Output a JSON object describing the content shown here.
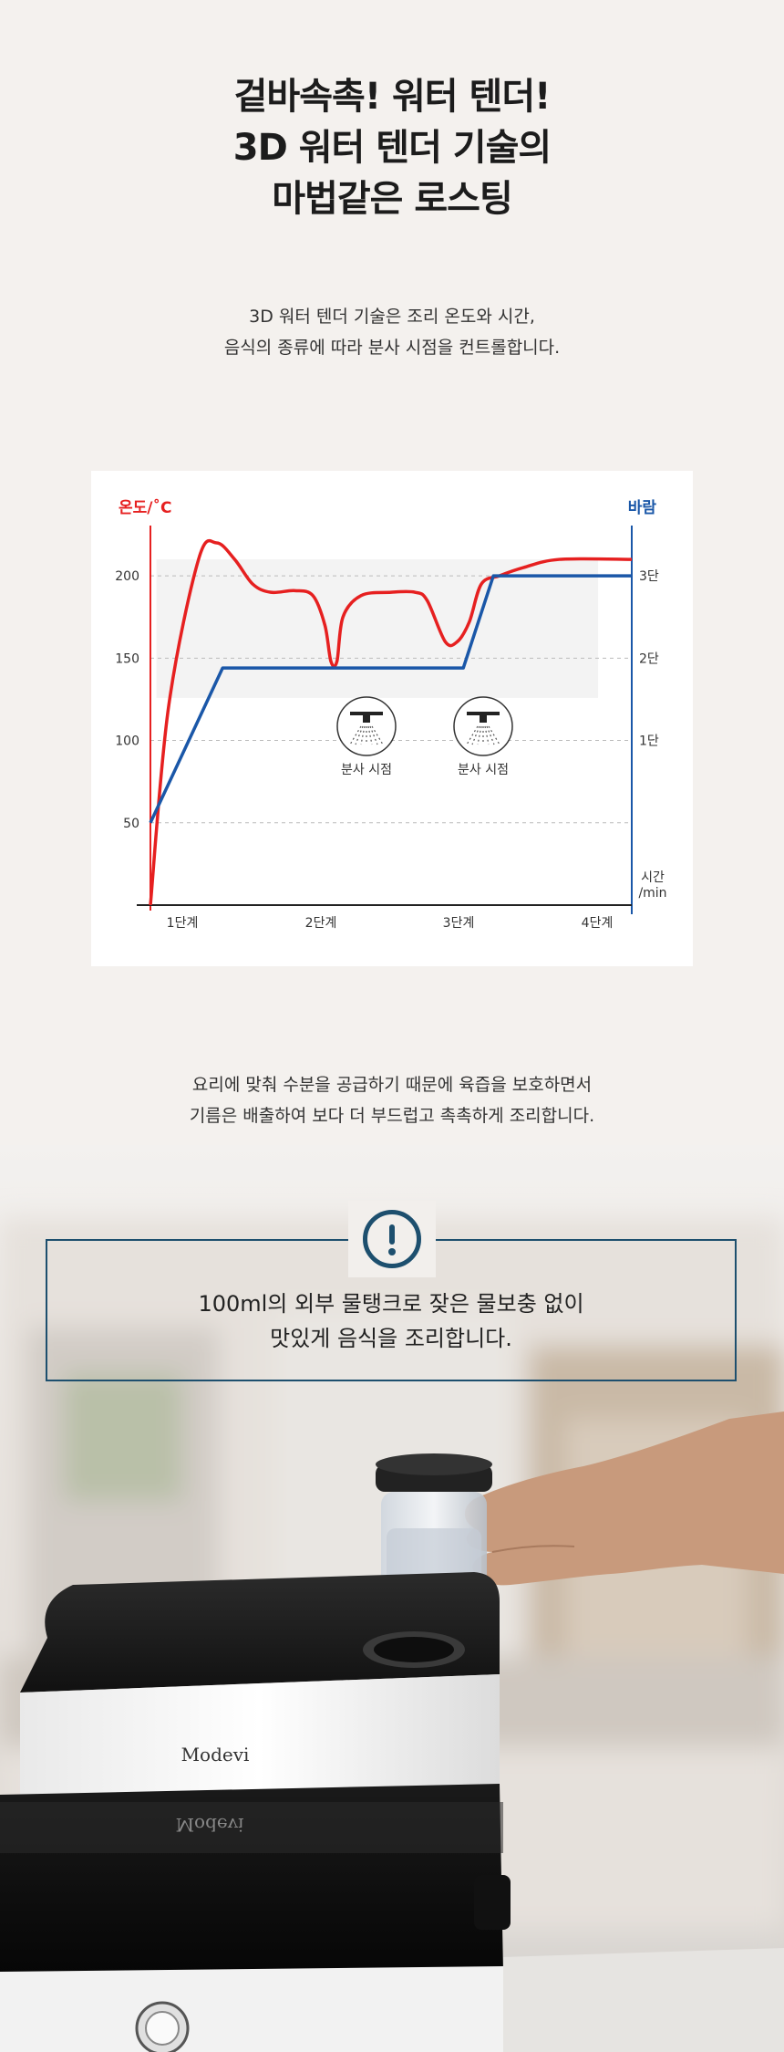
{
  "headline": {
    "line1": "겉바속촉! 워터 텐더!",
    "line2": "3D 워터 텐더 기술의",
    "line3": "마법같은 로스팅"
  },
  "intro": {
    "line1": "3D 워터 텐더 기술은 조리 온도와 시간,",
    "line2": "음식의 종류에 따라 분사 시점을 컨트롤합니다."
  },
  "chart_data": {
    "type": "line",
    "title": "",
    "left_axis_label": "온도/˚C",
    "right_axis_label": "바람",
    "x_axis_label": "시간\n/min",
    "x_axis_label_lines": [
      "시간",
      "/min"
    ],
    "y_ticks": [
      "200",
      "150",
      "100",
      "50"
    ],
    "y_tick_values": [
      200,
      150,
      100,
      50
    ],
    "y2_ticks": [
      "3단",
      "2단",
      "1단"
    ],
    "x_ticks": [
      "1단계",
      "2단계",
      "3단계",
      "4단계"
    ],
    "ylim": [
      0,
      225
    ],
    "xlim": [
      0,
      4
    ],
    "grid": "dashed horizontal",
    "spray_label": "분사 시점",
    "spray_points": [
      {
        "x": 1.55,
        "label": "분사 시점"
      },
      {
        "x": 2.4,
        "label": "분사 시점"
      }
    ],
    "series": [
      {
        "color": "#e62020",
        "axis": "left",
        "points": [
          [
            0,
            0
          ],
          [
            0.15,
            120
          ],
          [
            0.4,
            210
          ],
          [
            0.55,
            220
          ],
          [
            0.7,
            210
          ],
          [
            0.85,
            195
          ],
          [
            1.0,
            190
          ],
          [
            1.2,
            191
          ],
          [
            1.35,
            188
          ],
          [
            1.45,
            170
          ],
          [
            1.5,
            148
          ],
          [
            1.55,
            148
          ],
          [
            1.6,
            175
          ],
          [
            1.75,
            188
          ],
          [
            2.0,
            190
          ],
          [
            2.2,
            190
          ],
          [
            2.3,
            185
          ],
          [
            2.45,
            160
          ],
          [
            2.55,
            160
          ],
          [
            2.65,
            172
          ],
          [
            2.75,
            195
          ],
          [
            2.9,
            200
          ],
          [
            3.1,
            205
          ],
          [
            3.4,
            210
          ],
          [
            4.0,
            210
          ]
        ]
      },
      {
        "color": "#1a57a8",
        "axis": "right",
        "points": [
          [
            0,
            0
          ],
          [
            0.6,
            1.88
          ],
          [
            2.6,
            1.88
          ],
          [
            2.85,
            3.0
          ],
          [
            3.3,
            3.0
          ],
          [
            4.0,
            3.0
          ]
        ]
      }
    ]
  },
  "mid_text": {
    "line1": "요리에 맞춰 수분을 공급하기 때문에 육즙을 보호하면서",
    "line2": "기름은 배출하여 보다 더 부드럽고 촉촉하게 조리합니다."
  },
  "notice": {
    "icon": "exclamation-circle-icon",
    "line1": "100ml의 외부 물탱크로 잦은 물보충 없이",
    "line2": "맛있게 음식을 조리합니다."
  },
  "product": {
    "brand": "Modevi",
    "brand_reflection": "Modevi"
  },
  "colors": {
    "temperature": "#e62020",
    "wind": "#1a57a8",
    "notice_border": "#1d4f6e"
  }
}
